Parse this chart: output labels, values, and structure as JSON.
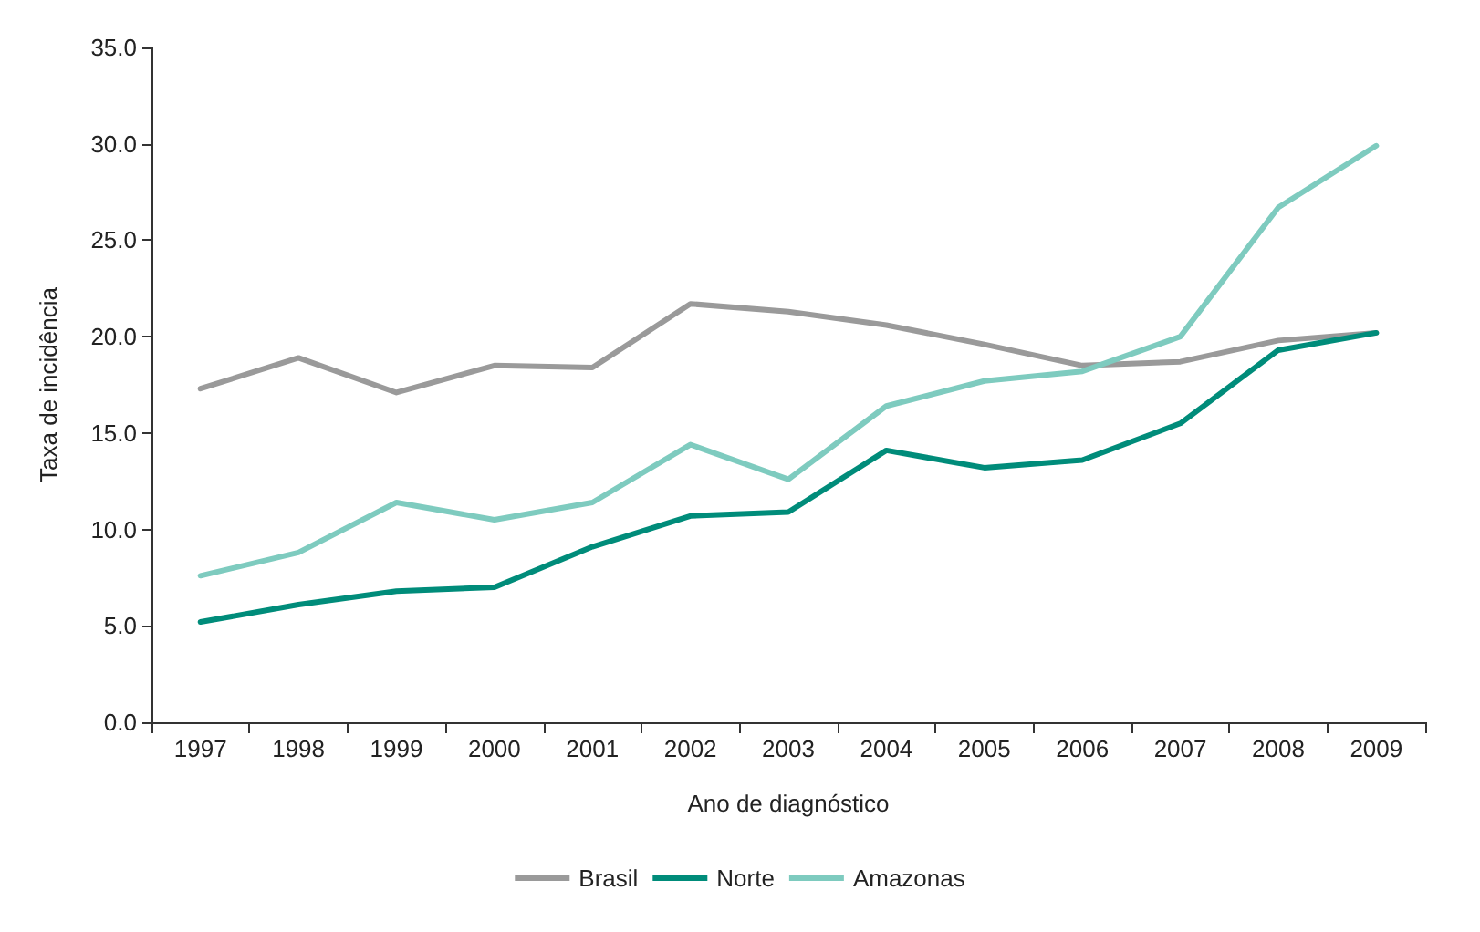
{
  "chart_data": {
    "type": "line",
    "xlabel": "Ano de diagnóstico",
    "ylabel": "Taxa de incidência",
    "categories": [
      "1997",
      "1998",
      "1999",
      "2000",
      "2001",
      "2002",
      "2003",
      "2004",
      "2005",
      "2006",
      "2007",
      "2008",
      "2009"
    ],
    "series": [
      {
        "name": "Brasil",
        "color": "#9a9a9a",
        "values": [
          17.3,
          18.9,
          17.1,
          18.5,
          18.4,
          21.7,
          21.3,
          20.6,
          19.6,
          18.5,
          18.7,
          19.8,
          20.2
        ]
      },
      {
        "name": "Norte",
        "color": "#008c7a",
        "values": [
          5.2,
          6.1,
          6.8,
          7.0,
          9.1,
          10.7,
          10.9,
          14.1,
          13.2,
          13.6,
          15.5,
          19.3,
          20.2
        ]
      },
      {
        "name": "Amazonas",
        "color": "#7ecbbf",
        "values": [
          7.6,
          8.8,
          11.4,
          10.5,
          11.4,
          14.4,
          12.6,
          16.4,
          17.7,
          18.2,
          20.0,
          26.7,
          29.9
        ]
      }
    ],
    "ylim": [
      0,
      35
    ],
    "yticks": [
      {
        "value": 0,
        "label": "0.0"
      },
      {
        "value": 5,
        "label": "5.0"
      },
      {
        "value": 10,
        "label": "10.0"
      },
      {
        "value": 15,
        "label": "15.0"
      },
      {
        "value": 20,
        "label": "20.0"
      },
      {
        "value": 25,
        "label": "25.0"
      },
      {
        "value": 30,
        "label": "30.0"
      },
      {
        "value": 35,
        "label": "35.0"
      }
    ],
    "grid": false,
    "legend": "bottom",
    "marker": "none",
    "line_style": "solid"
  }
}
